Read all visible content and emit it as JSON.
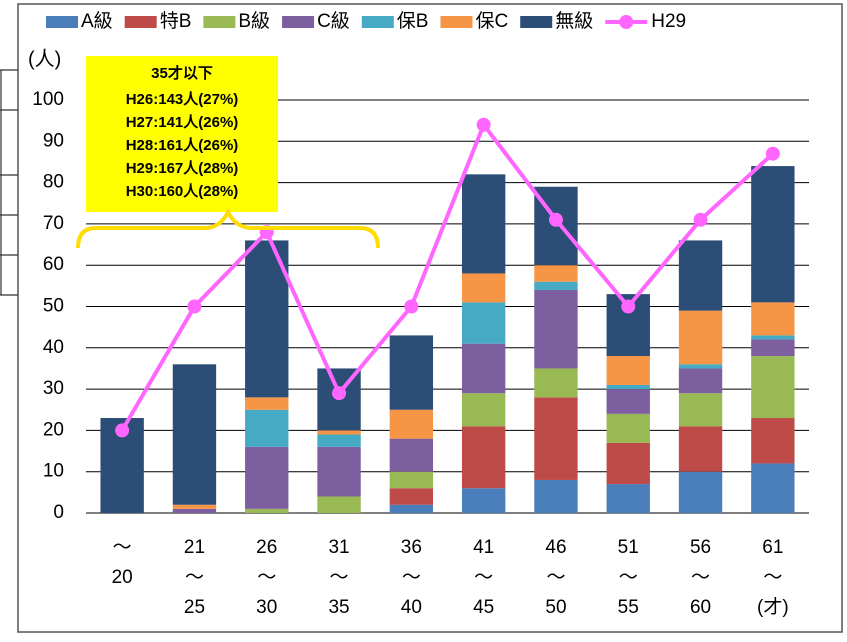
{
  "chart_data": {
    "type": "stacked_bar_line",
    "y_label": "(人)",
    "categories": [
      [
        "～",
        "20"
      ],
      [
        "21",
        "～",
        "25"
      ],
      [
        "26",
        "～",
        "30"
      ],
      [
        "31",
        "～",
        "35"
      ],
      [
        "36",
        "～",
        "40"
      ],
      [
        "41",
        "～",
        "45"
      ],
      [
        "46",
        "～",
        "50"
      ],
      [
        "51",
        "～",
        "55"
      ],
      [
        "56",
        "～",
        "60"
      ],
      [
        "61",
        "～",
        "(才)"
      ]
    ],
    "series": [
      {
        "name": "A級",
        "type": "bar",
        "color": "#4a7ebb",
        "values": [
          0,
          0,
          0,
          0,
          2,
          6,
          8,
          7,
          10,
          12
        ]
      },
      {
        "name": "特B",
        "type": "bar",
        "color": "#be4b48",
        "values": [
          0,
          0,
          0,
          0,
          4,
          15,
          20,
          10,
          11,
          11
        ]
      },
      {
        "name": "B級",
        "type": "bar",
        "color": "#98b954",
        "values": [
          0,
          0,
          1,
          4,
          4,
          8,
          7,
          7,
          8,
          15
        ]
      },
      {
        "name": "C級",
        "type": "bar",
        "color": "#7d5fa0",
        "values": [
          0,
          1,
          15,
          12,
          8,
          12,
          19,
          6,
          6,
          4
        ]
      },
      {
        "name": "保B",
        "type": "bar",
        "color": "#46aac5",
        "values": [
          0,
          0,
          9,
          3,
          0,
          10,
          2,
          1,
          1,
          1
        ]
      },
      {
        "name": "保C",
        "type": "bar",
        "color": "#f69545",
        "values": [
          0,
          1,
          3,
          1,
          7,
          7,
          4,
          7,
          13,
          8
        ]
      },
      {
        "name": "無級",
        "type": "bar",
        "color": "#2c4d75",
        "values": [
          23,
          34,
          38,
          15,
          18,
          24,
          19,
          15,
          17,
          33
        ]
      },
      {
        "name": "H29",
        "type": "line",
        "color": "#ff66ff",
        "values": [
          20,
          50,
          68,
          29,
          50,
          94,
          71,
          50,
          71,
          87
        ]
      }
    ],
    "ylim": [
      0,
      100
    ],
    "yticks": [
      0,
      10,
      20,
      30,
      40,
      50,
      60,
      70,
      80,
      90,
      100
    ],
    "grid": true,
    "annotation": {
      "title": "35才以下",
      "lines": [
        "H26:143人(27%)",
        "H27:141人(26%)",
        "H28:161人(26%)",
        "H29:167人(28%)",
        "H30:160人(28%)"
      ]
    }
  }
}
